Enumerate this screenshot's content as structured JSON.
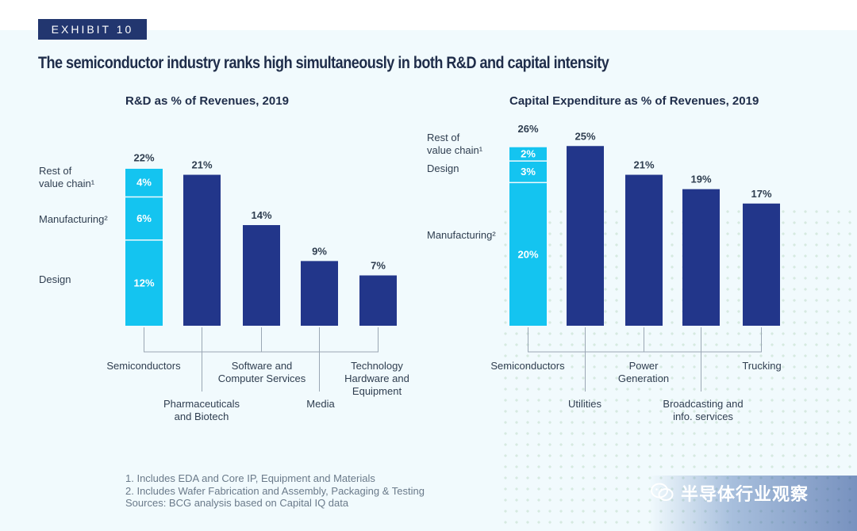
{
  "exhibit_label": "EXHIBIT 10",
  "title": "The semiconductor industry ranks high simultaneously in both R&D and capital intensity",
  "footnotes": [
    "1. Includes EDA and Core IP, Equipment and Materials",
    "2. Includes Wafer Fabrication and Assembly, Packaging & Testing",
    "Sources: BCG analysis based on Capital IQ data"
  ],
  "watermark": "半导体行业观察",
  "colors": {
    "navy": "#22368a",
    "cyan": "#14c4f0",
    "line": "#9aa7b4",
    "text": "#2f3e50"
  },
  "chart_data": [
    {
      "type": "bar",
      "title": "R&D as % of Revenues, 2019",
      "categories": [
        "Semiconductors",
        "Pharmaceuticals and Biotech",
        "Software and Computer Services",
        "Media",
        "Technology Hardware and Equipment"
      ],
      "values": [
        22,
        21,
        14,
        9,
        7
      ],
      "value_labels": [
        "22%",
        "21%",
        "14%",
        "9%",
        "7%"
      ],
      "stack": [
        {
          "name": "Design",
          "value": 12,
          "label": "12%"
        },
        {
          "name": "Manufacturing²",
          "value": 6,
          "label": "6%"
        },
        {
          "name": "Rest of value chain¹",
          "value": 4,
          "label": "4%"
        }
      ],
      "stack_legend": [
        "Rest of value chain¹",
        "Manufacturing²",
        "Design"
      ]
    },
    {
      "type": "bar",
      "title": "Capital Expenditure as % of Revenues, 2019",
      "categories": [
        "Semiconductors",
        "Utilities",
        "Power Generation",
        "Broadcasting and info. services",
        "Trucking"
      ],
      "values": [
        26,
        25,
        21,
        19,
        17
      ],
      "value_labels": [
        "26%",
        "25%",
        "21%",
        "19%",
        "17%"
      ],
      "stack": [
        {
          "name": "Manufacturing²",
          "value": 20,
          "label": "20%"
        },
        {
          "name": "Design",
          "value": 3,
          "label": "3%"
        },
        {
          "name": "Rest of value chain¹",
          "value": 2,
          "label": "2%"
        }
      ],
      "stack_legend": [
        "Rest of value chain¹",
        "Design",
        "Manufacturing²"
      ]
    }
  ]
}
